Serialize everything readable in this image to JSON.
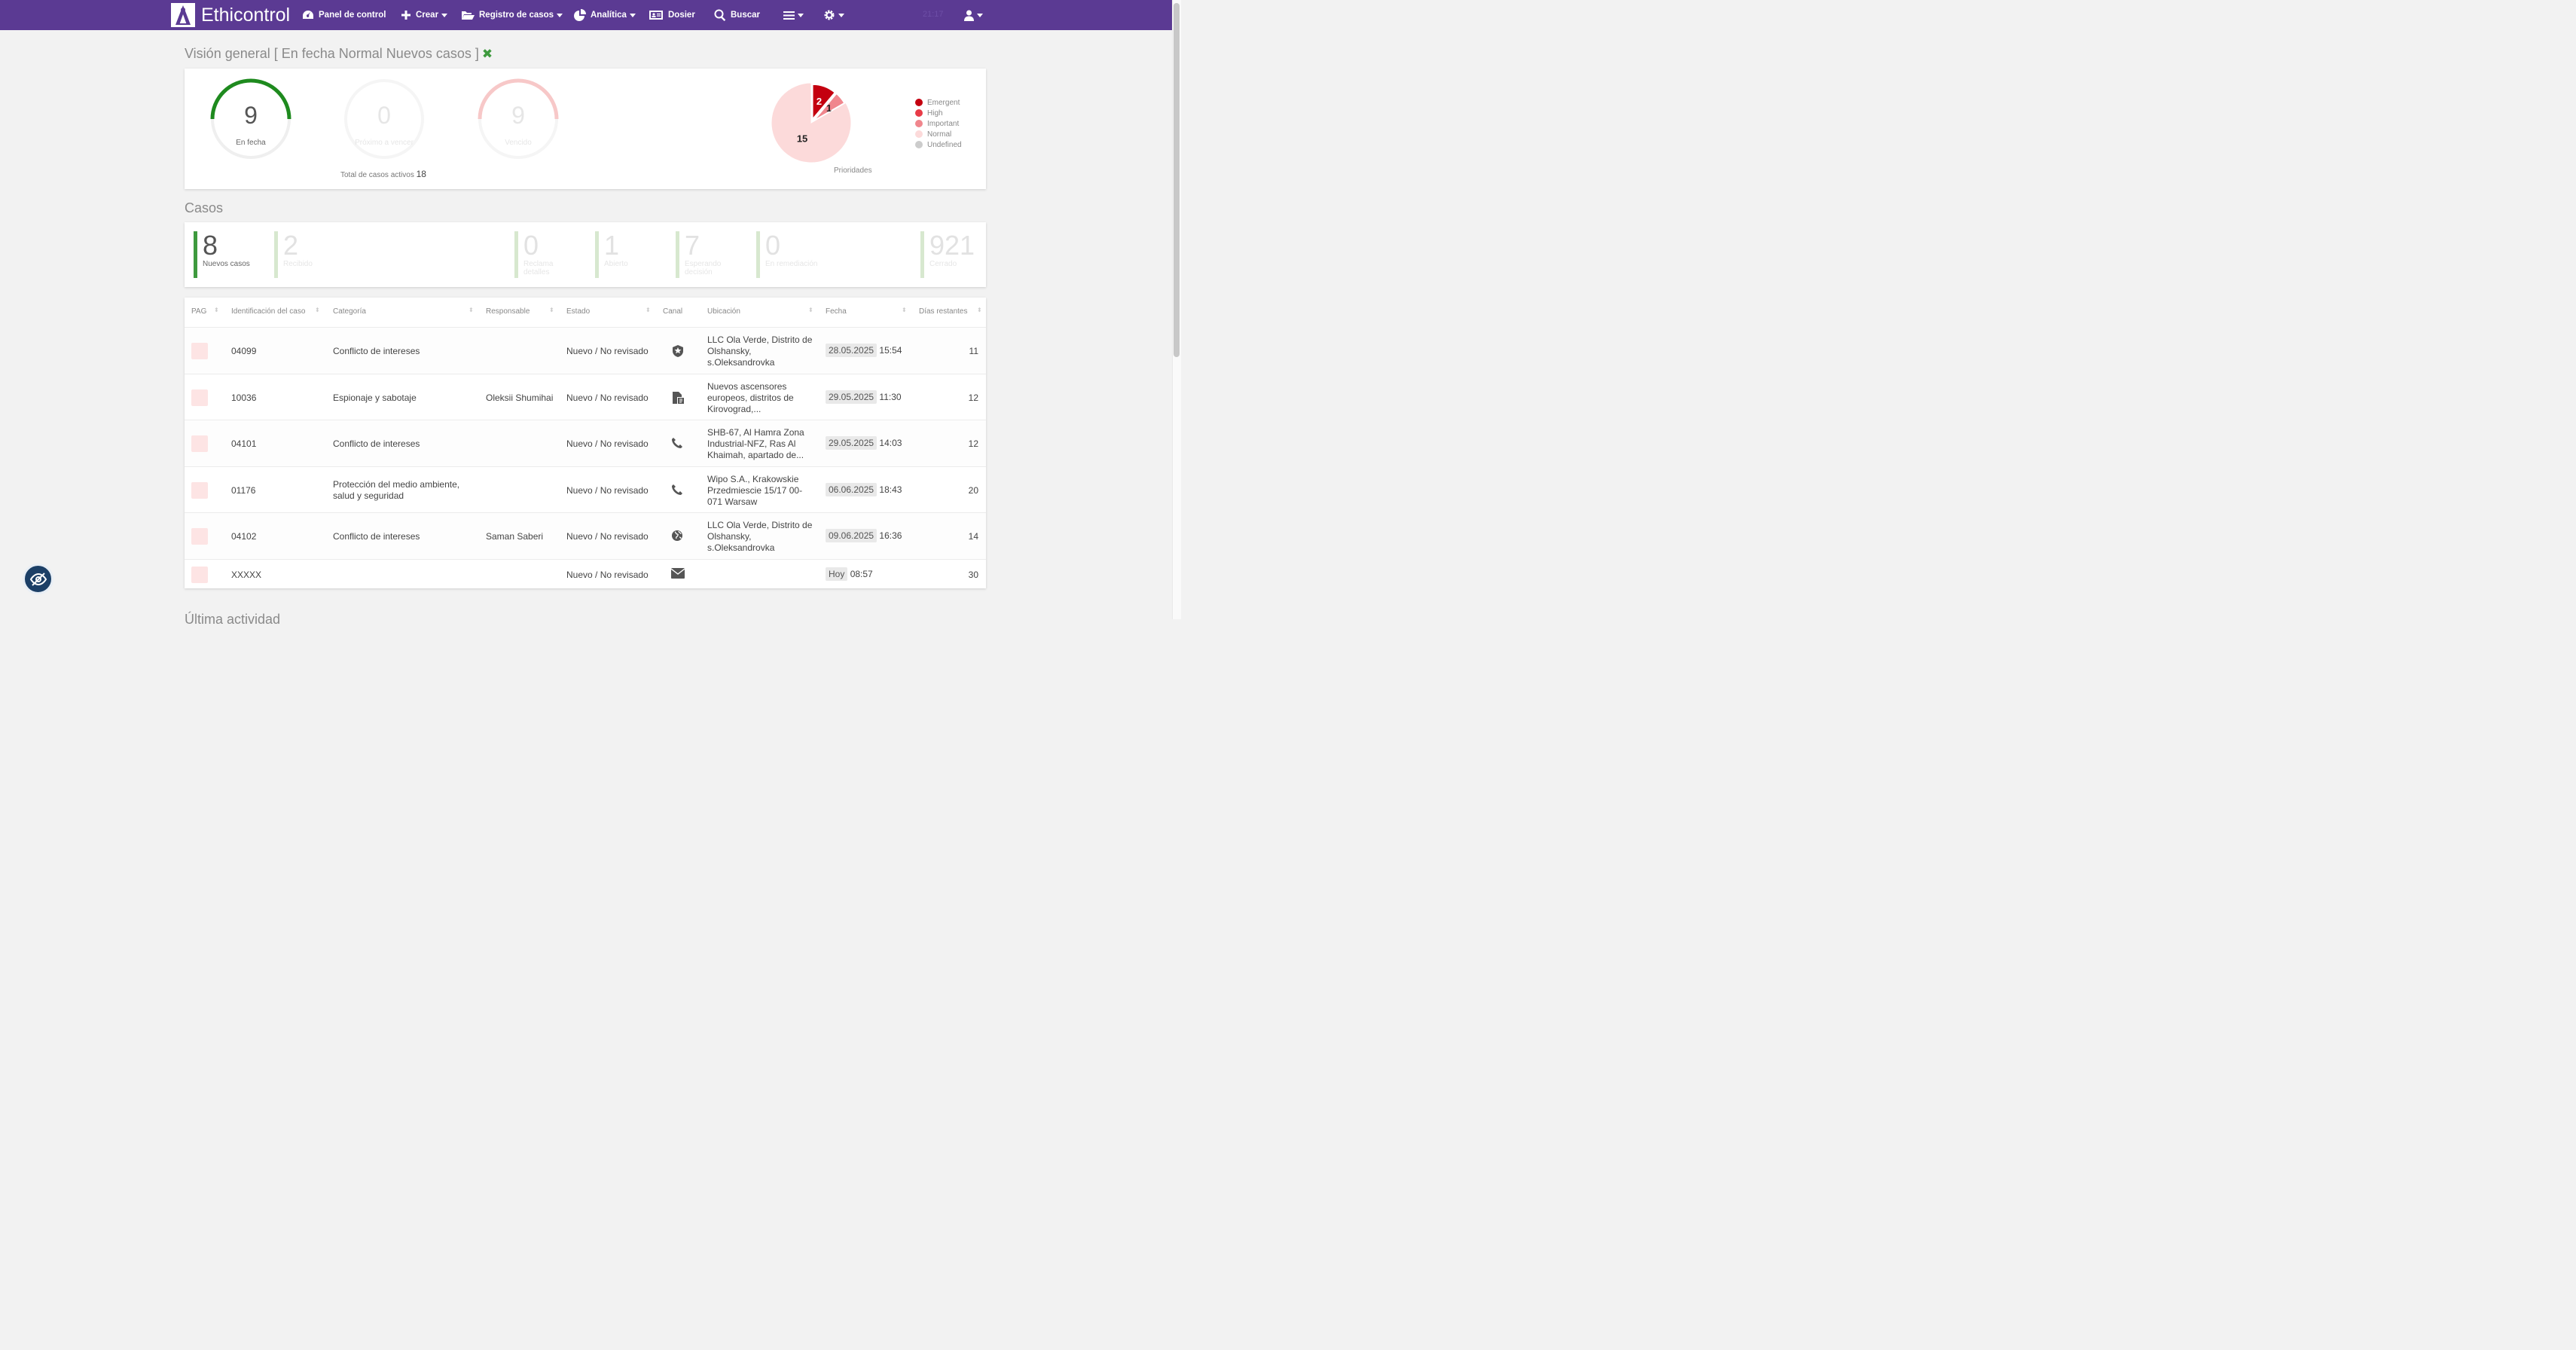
{
  "nav": {
    "brand": "Ethicontrol",
    "dashboard": "Panel de control",
    "create": "Crear",
    "case_log": "Registro de casos",
    "analytics": "Analítica",
    "dossier": "Dosier",
    "search": "Buscar",
    "time_faded": "21:17"
  },
  "overview": {
    "title": "Visión general [ En fecha Normal Nuevos casos ]",
    "gauges": [
      {
        "value": "9",
        "label": "En fecha",
        "fraction": 0.5,
        "color": "#1e8a1e"
      },
      {
        "value": "0",
        "label": "Próximo a vencer",
        "fraction": 0,
        "color": "#e6e6e6"
      },
      {
        "value": "9",
        "label": "Vencido",
        "fraction": 0.5,
        "color": "#f7c8c8"
      }
    ],
    "total_label": "Total de casos activos",
    "total_value": "18",
    "priorities_label": "Prioridades",
    "legend": [
      {
        "name": "Emergent",
        "color": "#c4000f"
      },
      {
        "name": "High",
        "color": "#e83b47"
      },
      {
        "name": "Important",
        "color": "#f0868d"
      },
      {
        "name": "Normal",
        "color": "#fcdada"
      },
      {
        "name": "Undefined",
        "color": "#cccccc"
      }
    ],
    "pie": [
      {
        "label": "2",
        "value": 2,
        "color": "#c4000f"
      },
      {
        "label": "1",
        "value": 1,
        "color": "#f0868d"
      },
      {
        "label": "15",
        "value": 15,
        "color": "#fcdada"
      }
    ]
  },
  "cases": {
    "title": "Casos",
    "kpis": [
      {
        "value": "8",
        "label": "Nuevos casos"
      },
      {
        "value": "2",
        "label": "Recibido"
      },
      {
        "value": "0",
        "label": "Reclama detalles"
      },
      {
        "value": "1",
        "label": "Abierto"
      },
      {
        "value": "7",
        "label": "Esperando decisión"
      },
      {
        "value": "0",
        "label": "En remediación"
      },
      {
        "value": "921",
        "label": "Cerrado"
      }
    ]
  },
  "table": {
    "headers": [
      "PAG",
      "Identificación del caso",
      "Categoría",
      "Responsable",
      "Estado",
      "Canal",
      "Ubicación",
      "Fecha",
      "Días restantes"
    ],
    "rows": [
      {
        "id": "04099",
        "category": "Conflicto de intereses",
        "owner": "",
        "status": "Nuevo / No revisado",
        "channel": "shield-icon",
        "location": "LLC Ola Verde, Distrito de Olshansky, s.Oleksandrovka",
        "date": "28.05.2025",
        "time": "15:54",
        "days": "11"
      },
      {
        "id": "10036",
        "category": "Espionaje y sabotaje",
        "owner": "Oleksii Shumihai",
        "status": "Nuevo / No revisado",
        "channel": "document-icon",
        "location": "Nuevos ascensores europeos, distritos de Kirovograd,...",
        "date": "29.05.2025",
        "time": "11:30",
        "days": "12"
      },
      {
        "id": "04101",
        "category": "Conflicto de intereses",
        "owner": "",
        "status": "Nuevo / No revisado",
        "channel": "phone-icon",
        "location": "SHB-67, Al Hamra Zona Industrial-NFZ, Ras Al Khaimah, apartado de...",
        "date": "29.05.2025",
        "time": "14:03",
        "days": "12"
      },
      {
        "id": "01176",
        "category": "Protección del medio ambiente, salud y seguridad",
        "owner": "",
        "status": "Nuevo / No revisado",
        "channel": "phone-icon",
        "location": "Wipo S.A., Krakowskie Przedmiescie 15/17 00-071 Warsaw",
        "date": "06.06.2025",
        "time": "18:43",
        "days": "20"
      },
      {
        "id": "04102",
        "category": "Conflicto de intereses",
        "owner": "Saman Saberi",
        "status": "Nuevo / No revisado",
        "channel": "globe-icon",
        "location": "LLC Ola Verde, Distrito de Olshansky, s.Oleksandrovka",
        "date": "09.06.2025",
        "time": "16:36",
        "days": "14"
      },
      {
        "id": "XXXXX",
        "category": "",
        "owner": "",
        "status": "Nuevo / No revisado",
        "channel": "envelope-icon",
        "location": "",
        "date": "Hoy",
        "time": "08:57",
        "days": "30"
      }
    ]
  },
  "next_section": "Última actividad"
}
